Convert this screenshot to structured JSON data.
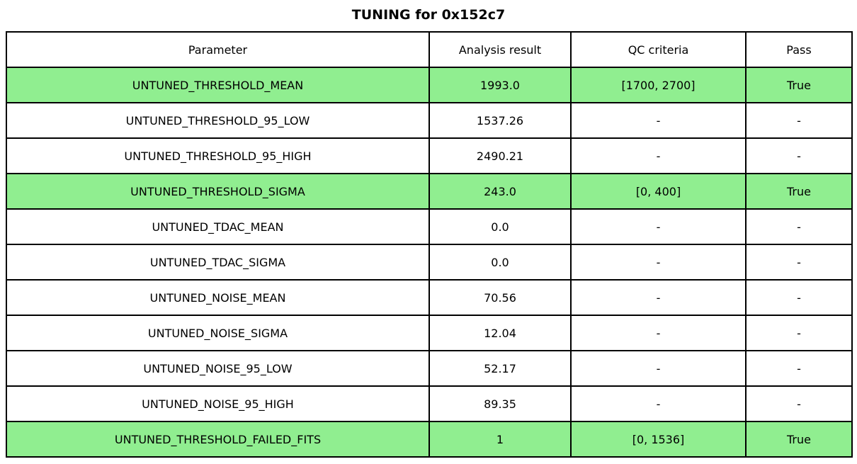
{
  "title": "TUNING for 0x152c7",
  "chart_data": {
    "type": "table",
    "title": "TUNING for 0x152c7",
    "columns": [
      "Parameter",
      "Analysis result",
      "QC criteria",
      "Pass"
    ],
    "rows": [
      {
        "parameter": "UNTUNED_THRESHOLD_MEAN",
        "result": "1993.0",
        "criteria": "[1700, 2700]",
        "pass": "True",
        "highlight": true
      },
      {
        "parameter": "UNTUNED_THRESHOLD_95_LOW",
        "result": "1537.26",
        "criteria": "-",
        "pass": "-",
        "highlight": false
      },
      {
        "parameter": "UNTUNED_THRESHOLD_95_HIGH",
        "result": "2490.21",
        "criteria": "-",
        "pass": "-",
        "highlight": false
      },
      {
        "parameter": "UNTUNED_THRESHOLD_SIGMA",
        "result": "243.0",
        "criteria": "[0, 400]",
        "pass": "True",
        "highlight": true
      },
      {
        "parameter": "UNTUNED_TDAC_MEAN",
        "result": "0.0",
        "criteria": "-",
        "pass": "-",
        "highlight": false
      },
      {
        "parameter": "UNTUNED_TDAC_SIGMA",
        "result": "0.0",
        "criteria": "-",
        "pass": "-",
        "highlight": false
      },
      {
        "parameter": "UNTUNED_NOISE_MEAN",
        "result": "70.56",
        "criteria": "-",
        "pass": "-",
        "highlight": false
      },
      {
        "parameter": "UNTUNED_NOISE_SIGMA",
        "result": "12.04",
        "criteria": "-",
        "pass": "-",
        "highlight": false
      },
      {
        "parameter": "UNTUNED_NOISE_95_LOW",
        "result": "52.17",
        "criteria": "-",
        "pass": "-",
        "highlight": false
      },
      {
        "parameter": "UNTUNED_NOISE_95_HIGH",
        "result": "89.35",
        "criteria": "-",
        "pass": "-",
        "highlight": false
      },
      {
        "parameter": "UNTUNED_THRESHOLD_FAILED_FITS",
        "result": "1",
        "criteria": "[0, 1536]",
        "pass": "True",
        "highlight": true
      }
    ]
  },
  "colors": {
    "highlight_green": "#90ee90",
    "border": "#000000",
    "text": "#000000",
    "background": "#ffffff"
  }
}
